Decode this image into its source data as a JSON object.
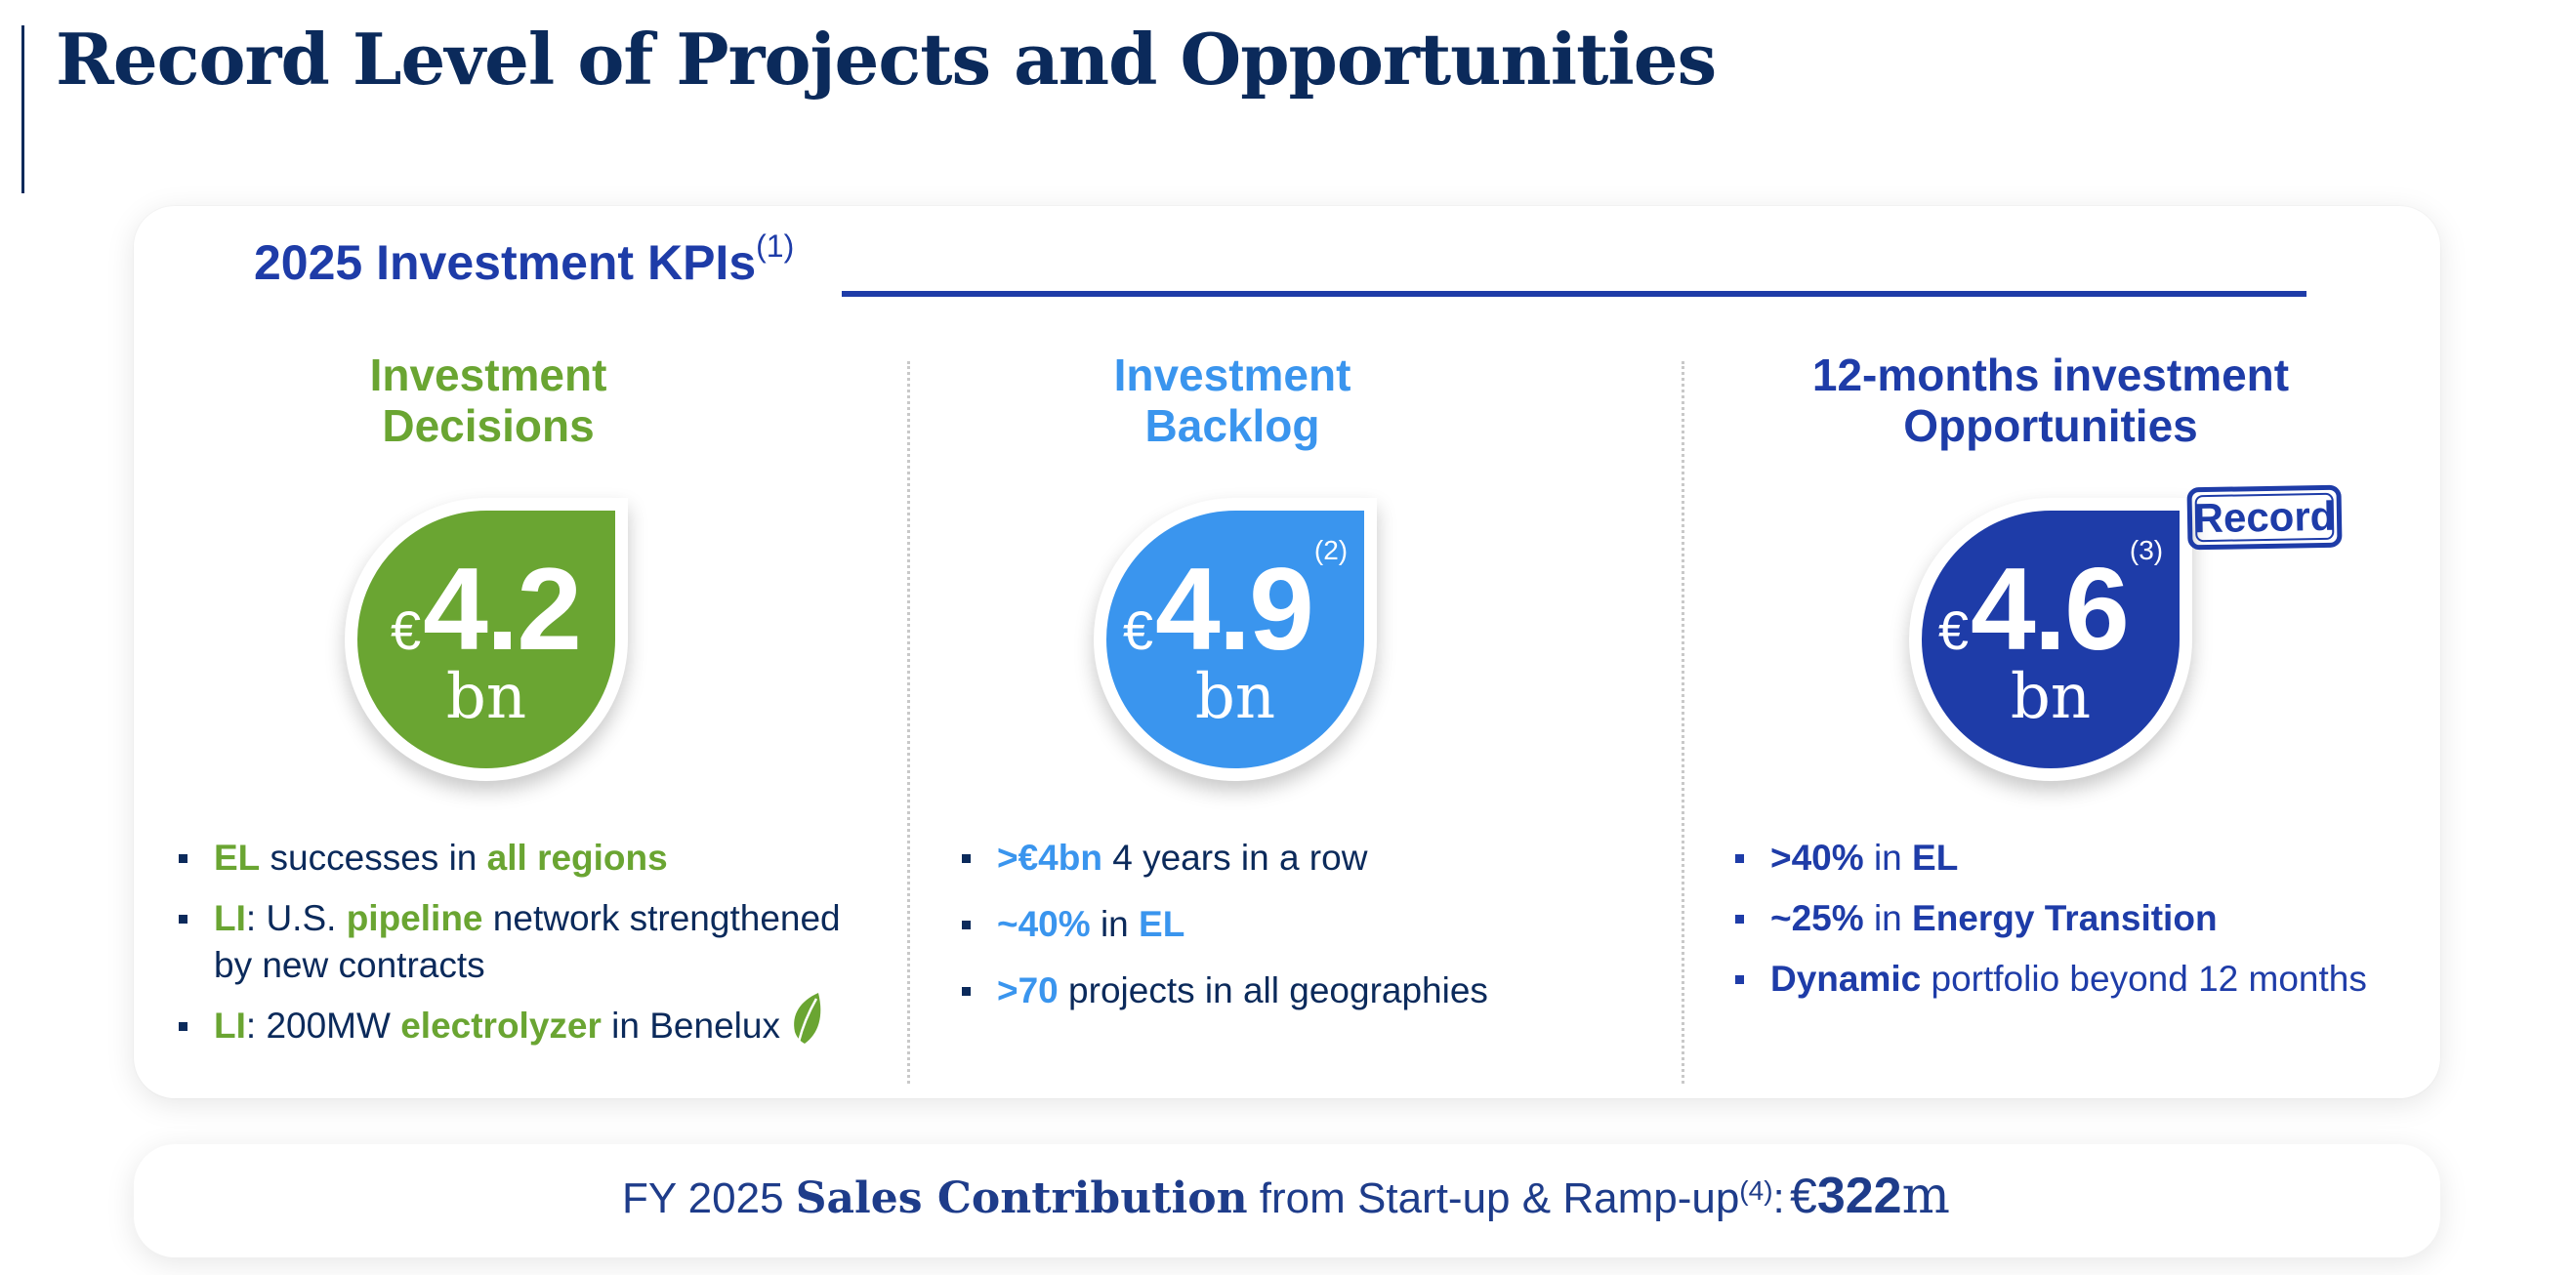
{
  "title": "Record Level of Projects and Opportunities",
  "kpi_section": {
    "heading": "2025 Investment KPIs",
    "heading_note": "(1)"
  },
  "colors": {
    "green": "#6aa532",
    "light_blue": "#3a95ee",
    "dark_blue": "#1e3ca8",
    "navy": "#0b2a5b"
  },
  "columns": [
    {
      "title_line1": "Investment",
      "title_line2": "Decisions",
      "currency": "€",
      "value": "4.2",
      "note": "",
      "unit": "bn",
      "bullets": [
        {
          "parts": [
            "EL",
            " successes in ",
            "all regions"
          ]
        },
        {
          "parts": [
            "LI",
            ": U.S. ",
            "pipeline",
            " network strengthened by new contracts"
          ]
        },
        {
          "parts": [
            "LI",
            ": 200MW ",
            "electrolyzer",
            " in Benelux"
          ],
          "icon": "leaf-icon"
        }
      ]
    },
    {
      "title_line1": "Investment",
      "title_line2": "Backlog",
      "currency": "€",
      "value": "4.9",
      "note": "(2)",
      "unit": "bn",
      "bullets": [
        {
          "parts": [
            ">€4bn",
            " 4 years in a row"
          ]
        },
        {
          "parts": [
            "~40%",
            " in ",
            "EL"
          ]
        },
        {
          "parts": [
            ">70",
            " projects in all geographies"
          ]
        }
      ]
    },
    {
      "title_line1": "12-months investment",
      "title_line2": "Opportunities",
      "currency": "€",
      "value": "4.6",
      "note": "(3)",
      "unit": "bn",
      "stamp": "Record",
      "bullets": [
        {
          "parts": [
            ">40%",
            " in ",
            "EL"
          ]
        },
        {
          "parts": [
            "~25%",
            " in ",
            "Energy Transition"
          ]
        },
        {
          "parts": [
            "Dynamic",
            " portfolio beyond 12 months"
          ]
        }
      ]
    }
  ],
  "sales": {
    "prefix": "FY 2025 ",
    "bold": "Sales Contribution",
    "suffix": " from Start-up & Ramp-up",
    "note": "(4)",
    "colon": ":",
    "currency": "€",
    "value": "322",
    "unit": "m"
  }
}
